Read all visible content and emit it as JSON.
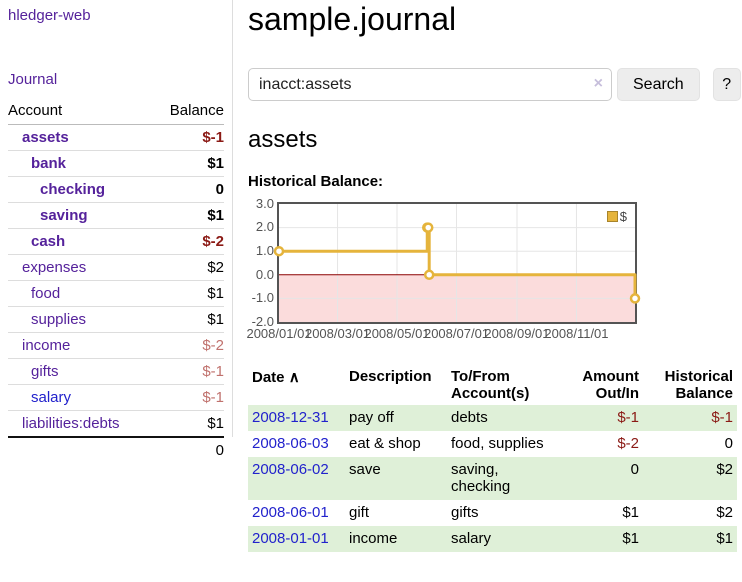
{
  "sidebar": {
    "app_title": "hledger-web",
    "journal_link": "Journal",
    "accounts": {
      "headers": {
        "account": "Account",
        "balance": "Balance"
      },
      "rows": [
        {
          "name": "assets",
          "balance": "$-1"
        },
        {
          "name": "bank",
          "balance": "$1"
        },
        {
          "name": "checking",
          "balance": "0"
        },
        {
          "name": "saving",
          "balance": "$1"
        },
        {
          "name": "cash",
          "balance": "$-2"
        },
        {
          "name": "expenses",
          "balance": "$2"
        },
        {
          "name": "food",
          "balance": "$1"
        },
        {
          "name": "supplies",
          "balance": "$1"
        },
        {
          "name": "income",
          "balance": "$-2"
        },
        {
          "name": "gifts",
          "balance": "$-1"
        },
        {
          "name": "salary",
          "balance": "$-1"
        },
        {
          "name": "liabilities:debts",
          "balance": "$1"
        }
      ],
      "total": "0"
    }
  },
  "header": {
    "title": "sample.journal"
  },
  "search": {
    "value": "inacct:assets",
    "clear_icon": "×",
    "button_label": "Search",
    "help_label": "?"
  },
  "account_page": {
    "title": "assets",
    "chart_label": "Historical Balance:"
  },
  "chart_data": {
    "type": "line",
    "style": "step",
    "title": "Historical Balance:",
    "series": [
      {
        "name": "$",
        "color": "#e5b43c",
        "points": [
          [
            "2008-01-01",
            1
          ],
          [
            "2008-06-01",
            2
          ],
          [
            "2008-06-02",
            2
          ],
          [
            "2008-06-03",
            0
          ],
          [
            "2008-12-31",
            -1
          ]
        ]
      }
    ],
    "x_ticks": [
      "2008/01/01",
      "2008/03/01",
      "2008/05/01",
      "2008/07/01",
      "2008/09/01",
      "2008/11/01"
    ],
    "y_ticks": [
      3.0,
      2.0,
      1.0,
      0.0,
      -1.0,
      -2.0
    ],
    "xlim": [
      "2008-01-01",
      "2008-12-31"
    ],
    "ylim": [
      -2,
      3
    ],
    "grid": true,
    "legend_position": "top-right",
    "negative_region_color": "#fbdcdc",
    "zero_line_color": "#8b0000",
    "grid_color": "#e6e6e6"
  },
  "register": {
    "headers": {
      "date": "Date",
      "sort_icon": "∧",
      "description": "Description",
      "accounts": "To/From Account(s)",
      "amount": "Amount Out/In",
      "balance": "Historical Balance"
    },
    "rows": [
      {
        "date": "2008-12-31",
        "description": "pay off",
        "accounts": "debts",
        "amount": "$-1",
        "balance": "$-1"
      },
      {
        "date": "2008-06-03",
        "description": "eat & shop",
        "accounts": "food, supplies",
        "amount": "$-2",
        "balance": "0"
      },
      {
        "date": "2008-06-02",
        "description": "save",
        "accounts": "saving, checking",
        "amount": "0",
        "balance": "$2"
      },
      {
        "date": "2008-06-01",
        "description": "gift",
        "accounts": "gifts",
        "amount": "$1",
        "balance": "$2"
      },
      {
        "date": "2008-01-01",
        "description": "income",
        "accounts": "salary",
        "amount": "$1",
        "balance": "$1"
      }
    ]
  },
  "colors": {
    "accent_purple": "#55229b",
    "link_blue": "#2222cc",
    "negative_dark": "#8b1a15",
    "negative_light": "#c0716d",
    "row_green": "#dff0d8",
    "series_yellow": "#e5b43c"
  }
}
